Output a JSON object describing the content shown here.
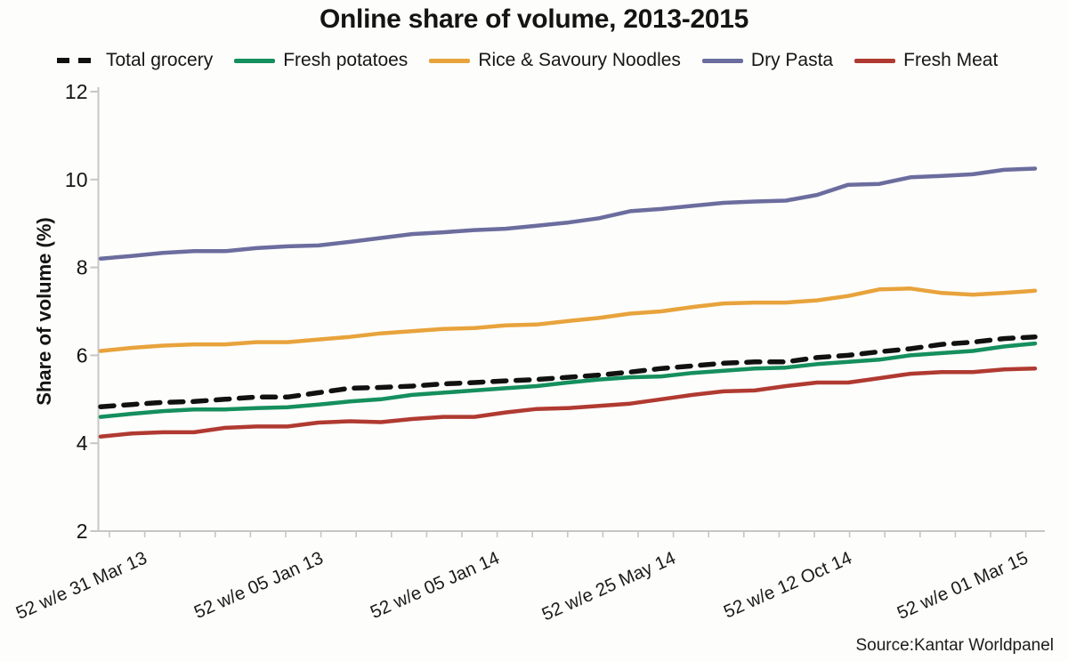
{
  "title": "Online share of volume, 2013-2015",
  "source": "Source:Kantar Worldpanel",
  "chart_data": {
    "type": "line",
    "title": "Online share of volume, 2013-2015",
    "xlabel": "",
    "ylabel": "Share of volume (%)",
    "ylim": [
      2,
      12
    ],
    "yticks": [
      2,
      4,
      6,
      8,
      10,
      12
    ],
    "grid": false,
    "legend_position": "top",
    "x_tick_count": 27,
    "x_label_tick_indices": [
      1,
      6,
      11,
      16,
      21,
      26
    ],
    "x_tick_labels": [
      "52 w/e 31 Mar 13",
      "52 w/e 05 Jan 13",
      "52 w/e 05 Jan 14",
      "52 w/e 25 May 14",
      "52 w/e 12 Oct 14",
      "52 w/e 01 Mar 15"
    ],
    "series": [
      {
        "name": "Total grocery",
        "color": "#111111",
        "style": "dashed",
        "values": [
          4.83,
          4.88,
          4.93,
          4.95,
          5.0,
          5.05,
          5.05,
          5.15,
          5.25,
          5.27,
          5.3,
          5.35,
          5.38,
          5.42,
          5.45,
          5.5,
          5.55,
          5.62,
          5.7,
          5.76,
          5.82,
          5.85,
          5.85,
          5.95,
          6.0,
          6.08,
          6.15,
          6.25,
          6.3,
          6.38,
          6.42
        ]
      },
      {
        "name": "Fresh potatoes",
        "color": "#158f5d",
        "style": "solid",
        "values": [
          4.6,
          4.67,
          4.73,
          4.77,
          4.77,
          4.8,
          4.82,
          4.88,
          4.95,
          5.0,
          5.1,
          5.15,
          5.2,
          5.25,
          5.3,
          5.38,
          5.45,
          5.5,
          5.52,
          5.6,
          5.65,
          5.7,
          5.72,
          5.8,
          5.85,
          5.9,
          6.0,
          6.05,
          6.1,
          6.2,
          6.27
        ]
      },
      {
        "name": "Rice & Savoury Noodles",
        "color": "#e8a33c",
        "style": "solid",
        "values": [
          6.1,
          6.17,
          6.22,
          6.25,
          6.25,
          6.3,
          6.3,
          6.36,
          6.42,
          6.5,
          6.55,
          6.6,
          6.62,
          6.68,
          6.7,
          6.78,
          6.85,
          6.95,
          7.0,
          7.1,
          7.18,
          7.2,
          7.2,
          7.25,
          7.35,
          7.5,
          7.52,
          7.42,
          7.38,
          7.42,
          7.47
        ]
      },
      {
        "name": "Dry Pasta",
        "color": "#6b6d9e",
        "style": "solid",
        "values": [
          8.2,
          8.26,
          8.33,
          8.37,
          8.37,
          8.44,
          8.48,
          8.5,
          8.58,
          8.67,
          8.76,
          8.8,
          8.85,
          8.88,
          8.95,
          9.02,
          9.12,
          9.28,
          9.33,
          9.4,
          9.47,
          9.5,
          9.52,
          9.65,
          9.88,
          9.9,
          10.05,
          10.08,
          10.12,
          10.22,
          10.25
        ]
      },
      {
        "name": "Fresh Meat",
        "color": "#b03a31",
        "style": "solid",
        "values": [
          4.15,
          4.22,
          4.25,
          4.25,
          4.35,
          4.38,
          4.38,
          4.47,
          4.5,
          4.48,
          4.55,
          4.6,
          4.6,
          4.7,
          4.78,
          4.8,
          4.85,
          4.9,
          5.0,
          5.1,
          5.18,
          5.2,
          5.3,
          5.38,
          5.38,
          5.48,
          5.58,
          5.62,
          5.62,
          5.68,
          5.7
        ]
      }
    ],
    "legend_order": [
      "Total grocery",
      "Fresh potatoes",
      "Rice & Savoury Noodles",
      "Dry Pasta",
      "Fresh Meat"
    ]
  }
}
